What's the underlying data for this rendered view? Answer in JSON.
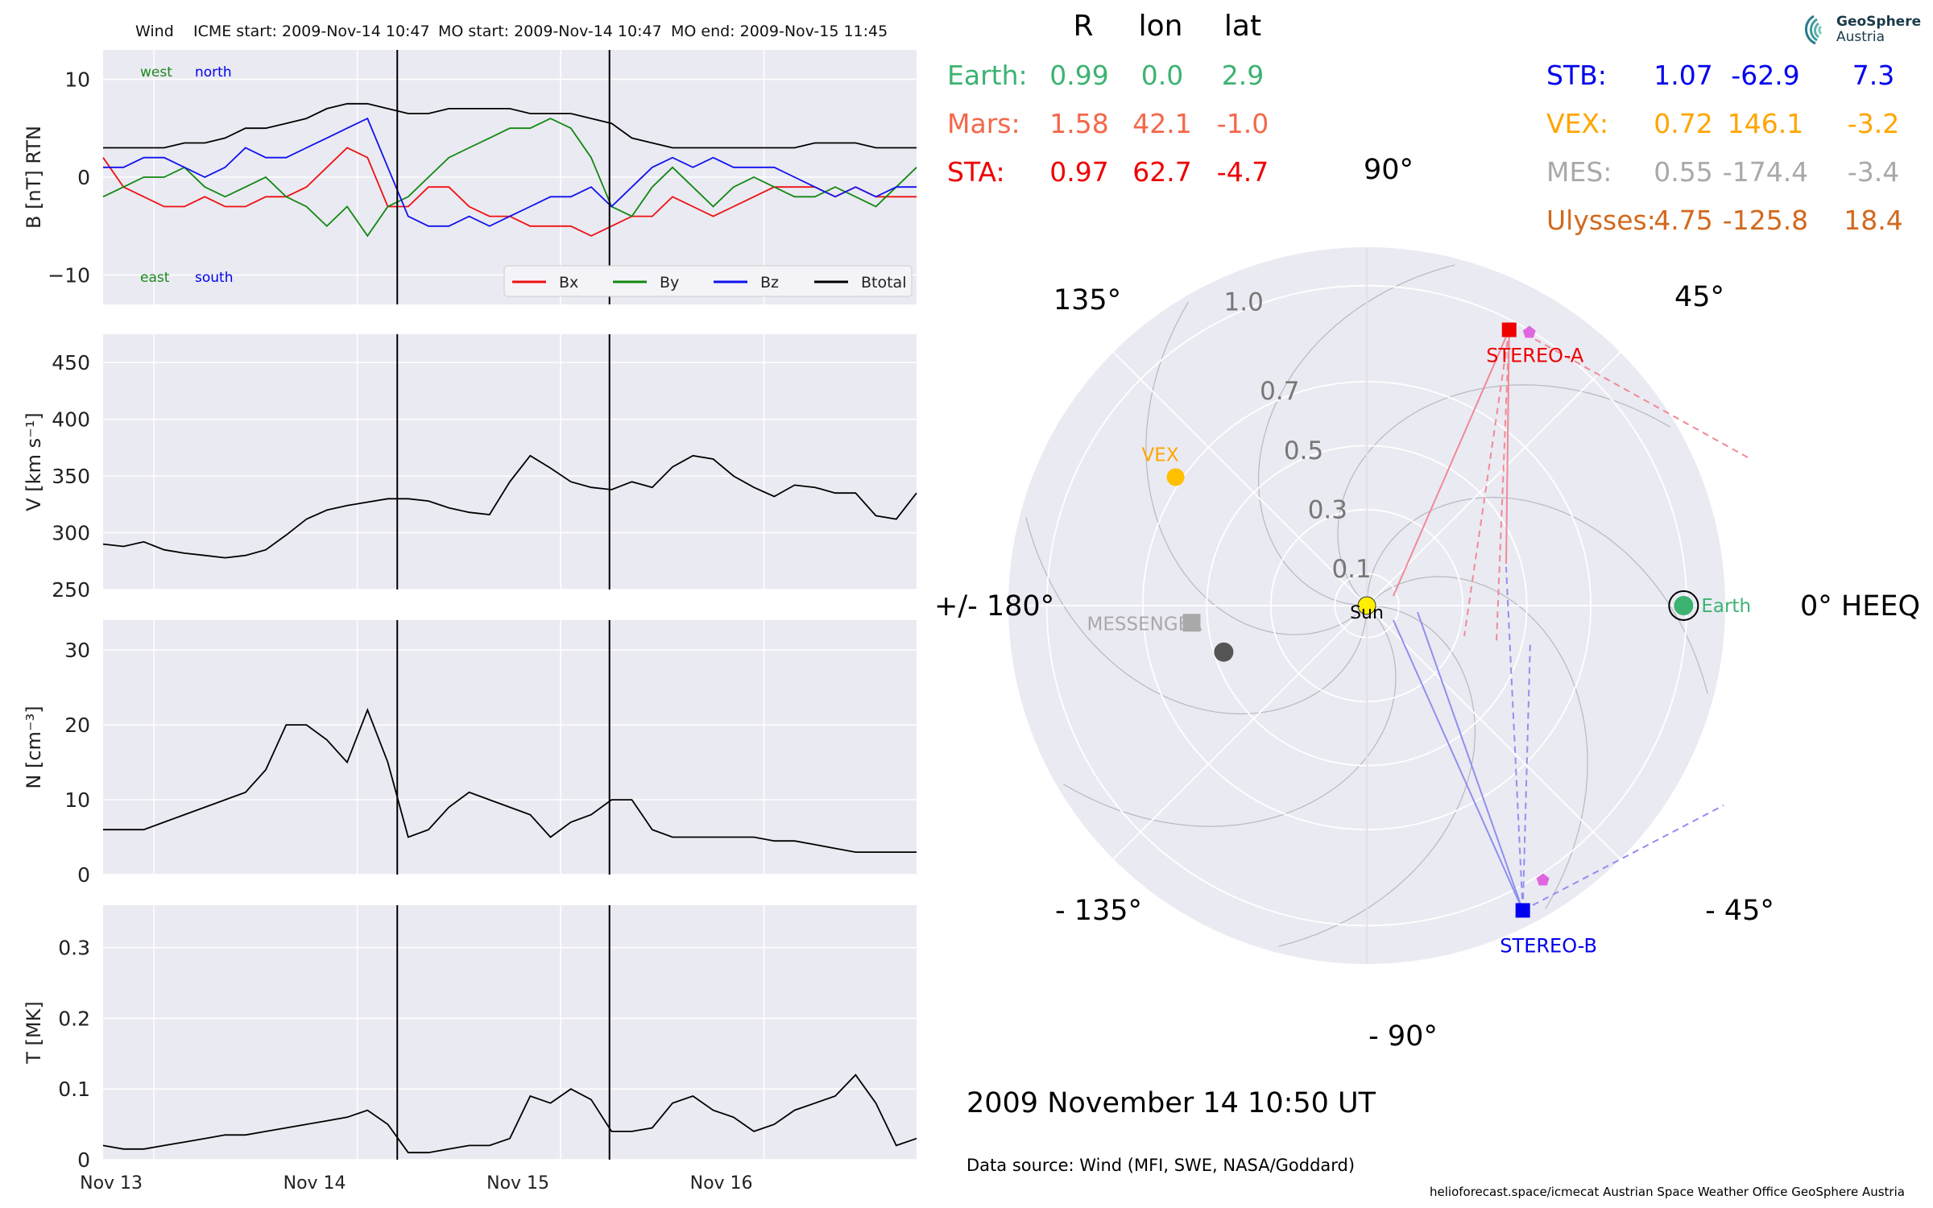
{
  "header": {
    "spacecraft": "Wind",
    "icme_start": "ICME start: 2009-Nov-14 10:47",
    "mo_start": "MO start: 2009-Nov-14 10:47",
    "mo_end": "MO end: 2009-Nov-15 11:45"
  },
  "logo": {
    "line1": "GeoSphere",
    "line2": "Austria"
  },
  "chart_data": [
    {
      "type": "line",
      "panel": "magnetic_field",
      "ylabel": "B [nT] RTN",
      "ylim": [
        -13,
        13
      ],
      "yticks": [
        10,
        0,
        -10
      ],
      "yticklabels": [
        "10",
        "0",
        "−10"
      ],
      "x_range_days": [
        "2009-11-13 00:00",
        "2009-11-17 00:00"
      ],
      "annotations": [
        {
          "text": "west",
          "color": "#1a8a1a"
        },
        {
          "text": "north",
          "color": "#0000ee"
        },
        {
          "text": "east",
          "color": "#1a8a1a"
        },
        {
          "text": "south",
          "color": "#0000ee"
        }
      ],
      "legend": {
        "placement": "lower-right",
        "entries": [
          {
            "name": "Bx",
            "color": "#ee1111"
          },
          {
            "name": "By",
            "color": "#118811"
          },
          {
            "name": "Bz",
            "color": "#1111ee"
          },
          {
            "name": "Btotal",
            "color": "#000000"
          }
        ]
      },
      "series": [
        {
          "name": "Bx",
          "color": "#ee1111",
          "x_days": [
            0,
            0.1,
            0.2,
            0.3,
            0.4,
            0.5,
            0.6,
            0.7,
            0.8,
            0.9,
            1.0,
            1.1,
            1.2,
            1.3,
            1.4,
            1.5,
            1.6,
            1.7,
            1.8,
            1.9,
            2.0,
            2.1,
            2.2,
            2.3,
            2.4,
            2.5,
            2.6,
            2.7,
            2.8,
            2.9,
            3.0,
            3.1,
            3.2,
            3.3,
            3.4,
            3.5,
            3.6,
            3.7,
            3.8,
            3.9,
            4.0
          ],
          "values": [
            2,
            -1,
            -2,
            -3,
            -3,
            -2,
            -3,
            -3,
            -2,
            -2,
            -1,
            1,
            3,
            2,
            -3,
            -3,
            -1,
            -1,
            -3,
            -4,
            -4,
            -5,
            -5,
            -5,
            -6,
            -5,
            -4,
            -4,
            -2,
            -3,
            -4,
            -3,
            -2,
            -1,
            -1,
            -1,
            -2,
            -1,
            -2,
            -2,
            -2
          ]
        },
        {
          "name": "By",
          "color": "#118811",
          "x_days": [
            0,
            0.1,
            0.2,
            0.3,
            0.4,
            0.5,
            0.6,
            0.7,
            0.8,
            0.9,
            1.0,
            1.1,
            1.2,
            1.3,
            1.4,
            1.5,
            1.6,
            1.7,
            1.8,
            1.9,
            2.0,
            2.1,
            2.2,
            2.3,
            2.4,
            2.5,
            2.6,
            2.7,
            2.8,
            2.9,
            3.0,
            3.1,
            3.2,
            3.3,
            3.4,
            3.5,
            3.6,
            3.7,
            3.8,
            3.9,
            4.0
          ],
          "values": [
            -2,
            -1,
            0,
            0,
            1,
            -1,
            -2,
            -1,
            0,
            -2,
            -3,
            -5,
            -3,
            -6,
            -3,
            -2,
            0,
            2,
            3,
            4,
            5,
            5,
            6,
            5,
            2,
            -3,
            -4,
            -1,
            1,
            -1,
            -3,
            -1,
            0,
            -1,
            -2,
            -2,
            -1,
            -2,
            -3,
            -1,
            1
          ]
        },
        {
          "name": "Bz",
          "color": "#1111ee",
          "x_days": [
            0,
            0.1,
            0.2,
            0.3,
            0.4,
            0.5,
            0.6,
            0.7,
            0.8,
            0.9,
            1.0,
            1.1,
            1.2,
            1.3,
            1.4,
            1.5,
            1.6,
            1.7,
            1.8,
            1.9,
            2.0,
            2.1,
            2.2,
            2.3,
            2.4,
            2.5,
            2.6,
            2.7,
            2.8,
            2.9,
            3.0,
            3.1,
            3.2,
            3.3,
            3.4,
            3.5,
            3.6,
            3.7,
            3.8,
            3.9,
            4.0
          ],
          "values": [
            1,
            1,
            2,
            2,
            1,
            0,
            1,
            3,
            2,
            2,
            3,
            4,
            5,
            6,
            1,
            -4,
            -5,
            -5,
            -4,
            -5,
            -4,
            -3,
            -2,
            -2,
            -1,
            -3,
            -1,
            1,
            2,
            1,
            2,
            1,
            1,
            1,
            0,
            -1,
            -2,
            -1,
            -2,
            -1,
            -1
          ]
        },
        {
          "name": "Btotal",
          "color": "#000000",
          "x_days": [
            0,
            0.1,
            0.2,
            0.3,
            0.4,
            0.5,
            0.6,
            0.7,
            0.8,
            0.9,
            1.0,
            1.1,
            1.2,
            1.3,
            1.4,
            1.5,
            1.6,
            1.7,
            1.8,
            1.9,
            2.0,
            2.1,
            2.2,
            2.3,
            2.4,
            2.5,
            2.6,
            2.7,
            2.8,
            2.9,
            3.0,
            3.1,
            3.2,
            3.3,
            3.4,
            3.5,
            3.6,
            3.7,
            3.8,
            3.9,
            4.0
          ],
          "values": [
            3,
            3,
            3,
            3,
            3.5,
            3.5,
            4,
            5,
            5,
            5.5,
            6,
            7,
            7.5,
            7.5,
            7,
            6.5,
            6.5,
            7,
            7,
            7,
            7,
            6.5,
            6.5,
            6.5,
            6,
            5.5,
            4,
            3.5,
            3,
            3,
            3,
            3,
            3,
            3,
            3,
            3.5,
            3.5,
            3.5,
            3,
            3,
            3
          ]
        }
      ]
    },
    {
      "type": "line",
      "panel": "speed",
      "ylabel": "V [km s⁻¹]",
      "ylim": [
        250,
        475
      ],
      "yticks": [
        450,
        400,
        350,
        300,
        250
      ],
      "series": [
        {
          "name": "V",
          "color": "#000000",
          "x_days": [
            0,
            0.1,
            0.2,
            0.3,
            0.4,
            0.5,
            0.6,
            0.7,
            0.8,
            0.9,
            1.0,
            1.1,
            1.2,
            1.3,
            1.4,
            1.5,
            1.6,
            1.7,
            1.8,
            1.9,
            2.0,
            2.1,
            2.2,
            2.3,
            2.4,
            2.5,
            2.6,
            2.7,
            2.8,
            2.9,
            3.0,
            3.1,
            3.2,
            3.3,
            3.4,
            3.5,
            3.6,
            3.7,
            3.8,
            3.9,
            4.0
          ],
          "values": [
            290,
            288,
            292,
            285,
            282,
            280,
            278,
            280,
            285,
            298,
            312,
            320,
            324,
            327,
            330,
            330,
            328,
            322,
            318,
            316,
            345,
            368,
            357,
            345,
            340,
            338,
            345,
            340,
            358,
            368,
            365,
            350,
            340,
            332,
            342,
            340,
            335,
            335,
            315,
            312,
            335
          ]
        }
      ]
    },
    {
      "type": "line",
      "panel": "density",
      "ylabel": "N [cm⁻³]",
      "ylim": [
        0,
        34
      ],
      "yticks": [
        30,
        20,
        10,
        0
      ],
      "series": [
        {
          "name": "N",
          "color": "#000000",
          "x_days": [
            0,
            0.1,
            0.2,
            0.3,
            0.4,
            0.5,
            0.6,
            0.7,
            0.8,
            0.9,
            1.0,
            1.1,
            1.2,
            1.3,
            1.4,
            1.5,
            1.6,
            1.7,
            1.8,
            1.9,
            2.0,
            2.1,
            2.2,
            2.3,
            2.4,
            2.5,
            2.6,
            2.7,
            2.8,
            2.9,
            3.0,
            3.1,
            3.2,
            3.3,
            3.4,
            3.5,
            3.6,
            3.7,
            3.8,
            3.9,
            4.0
          ],
          "values": [
            6,
            6,
            6,
            7,
            8,
            9,
            10,
            11,
            14,
            20,
            20,
            18,
            15,
            22,
            15,
            5,
            6,
            9,
            11,
            10,
            9,
            8,
            5,
            7,
            8,
            10,
            10,
            6,
            5,
            5,
            5,
            5,
            5,
            4.5,
            4.5,
            4,
            3.5,
            3,
            3,
            3,
            3
          ]
        }
      ]
    },
    {
      "type": "line",
      "panel": "temperature",
      "ylabel": "T [MK]",
      "ylim": [
        0,
        0.36
      ],
      "yticks": [
        0.3,
        0.2,
        0.1,
        0.0
      ],
      "xticklabels": [
        "Nov 13",
        "Nov 14",
        "Nov 15",
        "Nov 16"
      ],
      "series": [
        {
          "name": "T",
          "color": "#000000",
          "x_days": [
            0,
            0.1,
            0.2,
            0.3,
            0.4,
            0.5,
            0.6,
            0.7,
            0.8,
            0.9,
            1.0,
            1.1,
            1.2,
            1.3,
            1.4,
            1.5,
            1.6,
            1.7,
            1.8,
            1.9,
            2.0,
            2.1,
            2.2,
            2.3,
            2.4,
            2.5,
            2.6,
            2.7,
            2.8,
            2.9,
            3.0,
            3.1,
            3.2,
            3.3,
            3.4,
            3.5,
            3.6,
            3.7,
            3.8,
            3.9,
            4.0
          ],
          "values": [
            0.02,
            0.015,
            0.015,
            0.02,
            0.025,
            0.03,
            0.035,
            0.035,
            0.04,
            0.045,
            0.05,
            0.055,
            0.06,
            0.07,
            0.05,
            0.01,
            0.01,
            0.015,
            0.02,
            0.02,
            0.03,
            0.09,
            0.08,
            0.1,
            0.085,
            0.04,
            0.04,
            0.045,
            0.08,
            0.09,
            0.07,
            0.06,
            0.04,
            0.05,
            0.07,
            0.08,
            0.09,
            0.12,
            0.08,
            0.02,
            0.03
          ]
        }
      ]
    },
    {
      "type": "scatter",
      "panel": "polar_positions",
      "coordinate_label": "0° HEEQ",
      "date_label": "2009 November 14  10:50 UT",
      "angle_labels": [
        "90°",
        "45°",
        "0° HEEQ",
        "- 45°",
        "- 90°",
        "- 135°",
        "+/- 180°",
        "135°"
      ],
      "angles_deg": [
        90,
        45,
        0,
        -45,
        -90,
        -135,
        180,
        135
      ],
      "radial_labels": [
        "0.1",
        "0.3",
        "0.5",
        "0.7",
        "1.0"
      ],
      "radial_values": [
        0.1,
        0.3,
        0.5,
        0.7,
        1.0
      ],
      "r_max": 1.12,
      "table_header": [
        "R",
        "lon",
        "lat"
      ],
      "bodies_left": [
        {
          "label": "Earth:",
          "R": "0.99",
          "lon": "0.0",
          "lat": "2.9",
          "color": "#3cb371"
        },
        {
          "label": "Mars:",
          "R": "1.58",
          "lon": "42.1",
          "lat": "-1.0",
          "color": "#f4674a"
        },
        {
          "label": "STA:",
          "R": "0.97",
          "lon": "62.7",
          "lat": "-4.7",
          "color": "#ee0000"
        }
      ],
      "bodies_right": [
        {
          "label": "STB:",
          "R": "1.07",
          "lon": "-62.9",
          "lat": "7.3",
          "color": "#0000ee"
        },
        {
          "label": "VEX:",
          "R": "0.72",
          "lon": "146.1",
          "lat": "-3.2",
          "color": "#ffa500"
        },
        {
          "label": "MES:",
          "R": "0.55",
          "lon": "-174.4",
          "lat": "-3.4",
          "color": "#a9a9a9"
        },
        {
          "label": "Ulysses:",
          "R": "4.75",
          "lon": "-125.8",
          "lat": "18.4",
          "color": "#d2691e"
        }
      ],
      "points": [
        {
          "name": "Sun",
          "label": "Sun",
          "r": 0.0,
          "lon": 0.0,
          "color": "#ffee00"
        },
        {
          "name": "Earth",
          "label": "Earth",
          "r": 0.99,
          "lon": 0.0,
          "color": "#3cb371"
        },
        {
          "name": "STEREO-A",
          "label": "STEREO-A",
          "r": 0.97,
          "lon": 62.7,
          "color": "#ee0000"
        },
        {
          "name": "STEREO-B",
          "label": "STEREO-B",
          "r": 1.07,
          "lon": -62.9,
          "color": "#0000ee"
        },
        {
          "name": "VEX",
          "label": "VEX",
          "r": 0.72,
          "lon": 146.1,
          "color": "#ffc000"
        },
        {
          "name": "MESSENGER",
          "label": "MESSENGER",
          "r": 0.55,
          "lon": -174.4,
          "color": "#a9a9a9"
        },
        {
          "name": "MESSENGER-2",
          "label": "",
          "r": 0.47,
          "lon": -162.0,
          "color": "#555555"
        }
      ]
    }
  ],
  "footer": {
    "data_source": "Data source: Wind (MFI, SWE, NASA/Goddard)",
    "credits": "helioforecast.space/icmecat   Austrian Space Weather Office   GeoSphere Austria"
  }
}
